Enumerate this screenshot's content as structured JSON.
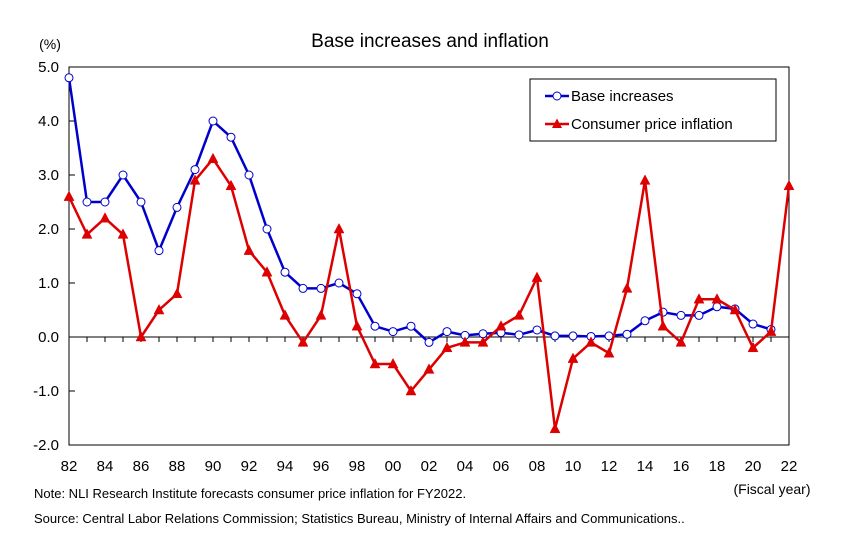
{
  "chart_data": {
    "type": "line",
    "title": "Base increases and inflation",
    "y_unit": "(%)",
    "x_unit": "(Fiscal year)",
    "ylim": [
      -2.0,
      5.0
    ],
    "y_ticks": [
      "5.0",
      "4.0",
      "3.0",
      "2.0",
      "1.0",
      "0.0",
      "-1.0",
      "-2.0"
    ],
    "x_tick_labels": [
      "82",
      "84",
      "86",
      "88",
      "90",
      "92",
      "94",
      "96",
      "98",
      "00",
      "02",
      "04",
      "06",
      "08",
      "10",
      "12",
      "14",
      "16",
      "18",
      "20",
      "22"
    ],
    "x": [
      1982,
      1983,
      1984,
      1985,
      1986,
      1987,
      1988,
      1989,
      1990,
      1991,
      1992,
      1993,
      1994,
      1995,
      1996,
      1997,
      1998,
      1999,
      2000,
      2001,
      2002,
      2003,
      2004,
      2005,
      2006,
      2007,
      2008,
      2009,
      2010,
      2011,
      2012,
      2013,
      2014,
      2015,
      2016,
      2017,
      2018,
      2019,
      2020,
      2021,
      2022
    ],
    "grid": false,
    "legend_position": "top-right",
    "series": [
      {
        "name": "Base increases",
        "color": "#0000cc",
        "marker": "open-circle",
        "values": [
          4.8,
          2.5,
          2.5,
          3.0,
          2.5,
          1.6,
          2.4,
          3.1,
          4.0,
          3.7,
          3.0,
          2.0,
          1.2,
          0.9,
          0.9,
          1.0,
          0.8,
          0.2,
          0.1,
          0.2,
          -0.1,
          0.1,
          0.03,
          0.06,
          0.08,
          0.04,
          0.13,
          0.02,
          0.02,
          0.01,
          0.02,
          0.05,
          0.3,
          0.46,
          0.4,
          0.4,
          0.56,
          0.52,
          0.24,
          0.14,
          null
        ]
      },
      {
        "name": "Consumer price inflation",
        "color": "#dd0000",
        "marker": "filled-triangle",
        "values": [
          2.6,
          1.9,
          2.2,
          1.9,
          0.0,
          0.5,
          0.8,
          2.9,
          3.3,
          2.8,
          1.6,
          1.2,
          0.4,
          -0.1,
          0.4,
          2.0,
          0.2,
          -0.5,
          -0.5,
          -1.0,
          -0.6,
          -0.2,
          -0.1,
          -0.1,
          0.2,
          0.4,
          1.1,
          -1.7,
          -0.4,
          -0.1,
          -0.3,
          0.9,
          2.9,
          0.2,
          -0.1,
          0.7,
          0.7,
          0.5,
          -0.2,
          0.1,
          2.8
        ]
      }
    ]
  },
  "notes": {
    "note1": "Note: NLI Research Institute forecasts consumer price inflation for FY2022.",
    "note2": "Source: Central Labor Relations Commission; Statistics Bureau, Ministry of Internal Affairs and Communications.."
  }
}
